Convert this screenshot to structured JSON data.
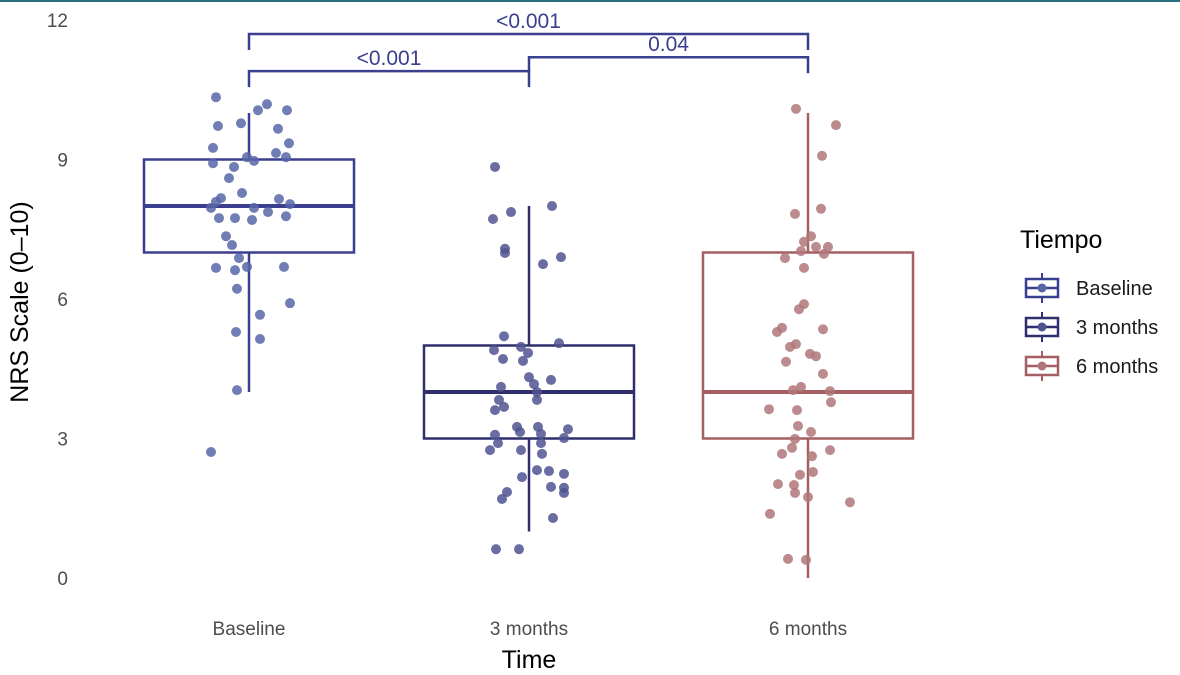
{
  "chart_data": {
    "type": "box",
    "title": "",
    "xlabel": "Time",
    "ylabel": "NRS Scale (0–10)",
    "ylim": [
      0,
      12
    ],
    "yticks": [
      0,
      3,
      6,
      9,
      12
    ],
    "categories": [
      "Baseline",
      "3 months",
      "6 months"
    ],
    "grid": false,
    "legend": {
      "title": "Tiempo",
      "position": "right",
      "entries": [
        "Baseline",
        "3 months",
        "6 months"
      ]
    },
    "colors": {
      "Baseline": "#3a3f8f",
      "3 months": "#2f2f6e",
      "6 months": "#a45f62",
      "Baseline_point": "#5866a8",
      "3 months_point": "#4f5390",
      "6 months_point": "#b0777a",
      "frame": "#2a6f7f"
    },
    "boxes": [
      {
        "name": "Baseline",
        "q1": 7,
        "median": 8,
        "q3": 9,
        "whisker_low": 4,
        "whisker_high": 10
      },
      {
        "name": "3 months",
        "q1": 3,
        "median": 4,
        "q3": 5,
        "whisker_low": 1,
        "whisker_high": 8
      },
      {
        "name": "6 months",
        "q1": 3,
        "median": 4,
        "q3": 7,
        "whisker_low": 0,
        "whisker_high": 10
      }
    ],
    "points": [
      {
        "group": "Baseline",
        "values": [
          10.34,
          10.19,
          10.06,
          10.06,
          9.72,
          9.78,
          9.66,
          9.35,
          9.25,
          9.14,
          9.05,
          9.05,
          8.97,
          8.92,
          8.84,
          8.6,
          8.28,
          8.17,
          8.15,
          8.09,
          7.96,
          8.04,
          7.96,
          7.87,
          7.78,
          7.74,
          7.74,
          7.7,
          7.35,
          7.16,
          6.88,
          6.67,
          6.62,
          6.69,
          6.69,
          6.22,
          5.91,
          5.66,
          5.29,
          5.14,
          4.04,
          2.71
        ],
        "jitter": [
          -0.33,
          0.18,
          0.09,
          0.38,
          -0.31,
          -0.08,
          0.29,
          0.4,
          -0.36,
          0.27,
          0.37,
          -0.02,
          0.05,
          -0.36,
          -0.15,
          -0.2,
          -0.07,
          -0.28,
          0.3,
          -0.33,
          -0.38,
          0.41,
          0.05,
          0.19,
          0.37,
          -0.3,
          -0.14,
          0.03,
          -0.23,
          -0.17,
          -0.1,
          -0.33,
          -0.14,
          -0.02,
          0.35,
          -0.12,
          0.41,
          0.11,
          -0.13,
          0.11,
          -0.12,
          -0.38
        ]
      },
      {
        "group": "3 months",
        "values": [
          8.84,
          8.0,
          7.87,
          7.72,
          7.08,
          6.99,
          6.9,
          6.75,
          5.2,
          5.05,
          4.9,
          4.97,
          4.84,
          4.71,
          4.67,
          4.32,
          4.26,
          4.17,
          4.11,
          4.0,
          3.83,
          3.83,
          3.68,
          3.61,
          3.25,
          3.25,
          3.2,
          3.14,
          3.1,
          3.08,
          3.01,
          2.9,
          2.9,
          2.75,
          2.75,
          2.67,
          2.32,
          2.3,
          2.24,
          2.17,
          1.96,
          1.94,
          1.83,
          1.85,
          1.7,
          1.29,
          0.62,
          0.62
        ],
        "jitter": [
          -0.34,
          0.23,
          -0.18,
          -0.36,
          -0.24,
          -0.24,
          0.32,
          0.14,
          -0.25,
          0.3,
          -0.35,
          -0.08,
          -0.01,
          -0.26,
          -0.06,
          -0.0,
          0.22,
          0.05,
          -0.28,
          0.08,
          0.08,
          -0.3,
          -0.25,
          -0.34,
          -0.12,
          0.09,
          0.39,
          -0.09,
          0.12,
          -0.34,
          0.35,
          -0.31,
          0.12,
          -0.39,
          -0.08,
          0.13,
          0.08,
          0.2,
          0.35,
          -0.07,
          0.22,
          0.35,
          0.35,
          -0.22,
          -0.27,
          0.24,
          -0.33,
          -0.1
        ],
        "note": "points drawn at value"
      },
      {
        "group": "6 months",
        "values": [
          10.09,
          9.74,
          9.08,
          7.83,
          7.94,
          7.35,
          7.23,
          7.12,
          7.12,
          7.03,
          6.97,
          6.88,
          6.67,
          5.89,
          5.78,
          5.38,
          5.29,
          5.35,
          5.03,
          4.97,
          4.82,
          4.77,
          4.65,
          4.39,
          4.11,
          4.04,
          4.02,
          3.78,
          3.63,
          3.61,
          3.27,
          3.14,
          2.99,
          2.8,
          2.75,
          2.67,
          2.62,
          2.28,
          2.22,
          2.02,
          2.0,
          1.83,
          1.74,
          1.63,
          1.38,
          0.41,
          0.39
        ],
        "jitter": [
          -0.12,
          0.28,
          0.14,
          -0.13,
          0.13,
          0.03,
          -0.04,
          0.08,
          0.2,
          -0.07,
          0.16,
          -0.23,
          -0.04,
          -0.04,
          -0.09,
          -0.26,
          -0.31,
          0.15,
          -0.12,
          -0.18,
          0.02,
          0.08,
          -0.22,
          0.15,
          -0.07,
          -0.15,
          0.22,
          0.23,
          -0.39,
          -0.11,
          -0.1,
          0.03,
          -0.13,
          -0.16,
          0.22,
          -0.26,
          0.04,
          0.05,
          -0.08,
          -0.3,
          -0.14,
          -0.13,
          0.0,
          0.42,
          -0.38,
          -0.2,
          -0.02
        ]
      }
    ],
    "comparisons": [
      {
        "from": "Baseline",
        "to": "6 months",
        "label": "<0.001",
        "y": 11.7
      },
      {
        "from": "3 months",
        "to": "6 months",
        "label": "0.04",
        "y": 11.2
      },
      {
        "from": "Baseline",
        "to": "3 months",
        "label": "<0.001",
        "y": 10.9
      }
    ]
  }
}
